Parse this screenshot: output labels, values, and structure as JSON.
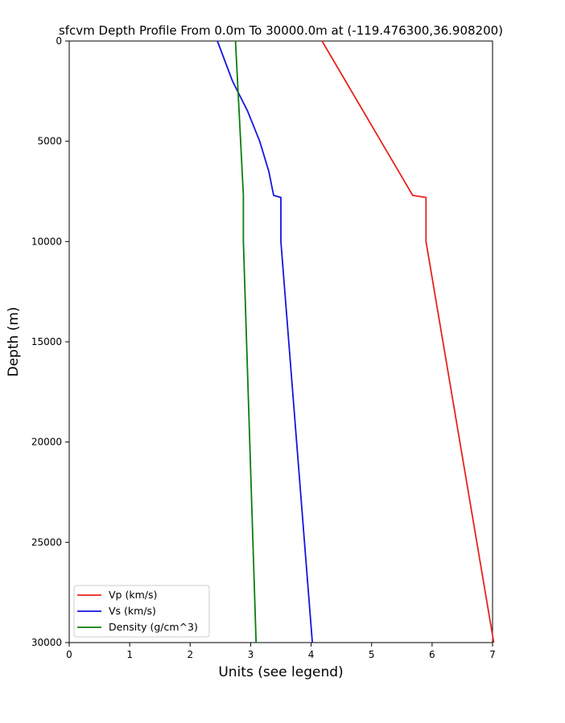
{
  "chart_data": {
    "type": "line",
    "title": "sfcvm Depth Profile From 0.0m To 30000.0m at (-119.476300,36.908200)",
    "xlabel": "Units (see legend)",
    "ylabel": "Depth (m)",
    "xlim": [
      0,
      7
    ],
    "ylim": [
      0,
      30000
    ],
    "y_inverted": true,
    "x_ticks": [
      "0",
      "1",
      "2",
      "3",
      "4",
      "5",
      "6",
      "7"
    ],
    "y_ticks": [
      "0",
      "5000",
      "10000",
      "15000",
      "20000",
      "25000",
      "30000"
    ],
    "grid": false,
    "legend_position": "lower-left",
    "series": [
      {
        "name": "Vp (km/s)",
        "color": "#e8221e",
        "points": [
          [
            4.18,
            0
          ],
          [
            5.68,
            7700
          ],
          [
            5.9,
            7800
          ],
          [
            5.9,
            10000
          ],
          [
            7.02,
            30000
          ]
        ]
      },
      {
        "name": "Vs (km/s)",
        "color": "#1414e0",
        "points": [
          [
            2.45,
            0
          ],
          [
            2.7,
            2000
          ],
          [
            2.95,
            3500
          ],
          [
            3.15,
            5000
          ],
          [
            3.3,
            6500
          ],
          [
            3.38,
            7700
          ],
          [
            3.5,
            7800
          ],
          [
            3.5,
            10000
          ],
          [
            4.02,
            30000
          ]
        ]
      },
      {
        "name": "Density (g/cm^3)",
        "color": "#0b7d0b",
        "points": [
          [
            2.75,
            0
          ],
          [
            2.88,
            7700
          ],
          [
            2.88,
            7800
          ],
          [
            2.88,
            10000
          ],
          [
            3.09,
            30000
          ]
        ]
      }
    ]
  }
}
